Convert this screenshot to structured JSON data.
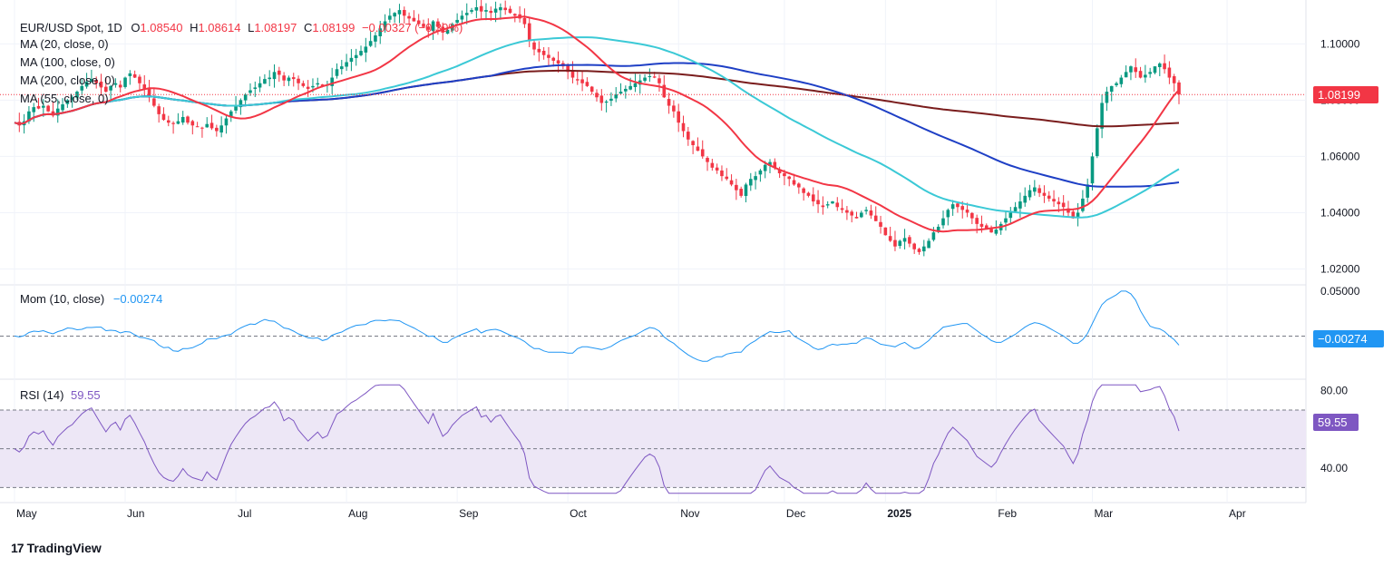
{
  "header": {
    "symbol": "EUR/USD Spot, 1D",
    "open_label": "O",
    "open": "1.08540",
    "high_label": "H",
    "high": "1.08614",
    "low_label": "L",
    "low": "1.08197",
    "close_label": "C",
    "close": "1.08199",
    "change": "−0.00327 (−0.30%)"
  },
  "ma_legend": [
    "MA (20, close, 0)",
    "MA (100, close, 0)",
    "MA (200, close, 0)",
    "MA (55, close, 0)"
  ],
  "momentum": {
    "label": "Mom (10, close)",
    "value": "−0.00274",
    "badge": "−0.00274"
  },
  "rsi": {
    "label": "RSI (14)",
    "value": "59.55",
    "badge": "59.55"
  },
  "price_badge": "1.08199",
  "footer": {
    "brand": "TradingView",
    "logo": "17"
  },
  "colors": {
    "up": "#089981",
    "down": "#f23645",
    "ma20": "#f23645",
    "ma55": "#3bc9d6",
    "ma100": "#1e3fc5",
    "ma200": "#7a1d1d",
    "mom": "#2196f3",
    "rsi": "#7e57c2",
    "rsi_band": "#ede7f6",
    "grid": "#f0f3fa",
    "axis_text": "#131722"
  },
  "chart_data": [
    {
      "type": "candlestick",
      "title": "EUR/USD Spot, 1D",
      "ylim": [
        1.015,
        1.113
      ],
      "y_ticks": [
        "1.10000",
        "1.08000",
        "1.06000",
        "1.04000",
        "1.02000"
      ],
      "y_tick_values": [
        1.1,
        1.08,
        1.06,
        1.04,
        1.02
      ],
      "x_ticks": [
        "May",
        "Jun",
        "Jul",
        "Aug",
        "Sep",
        "Oct",
        "Nov",
        "Dec",
        "2025",
        "Feb",
        "Mar",
        "Apr"
      ],
      "x_tick_day_index": [
        0,
        23,
        46,
        69,
        92,
        115,
        138,
        160,
        181,
        204,
        224,
        252
      ],
      "last_price": 1.08199,
      "close_series": [
        1.072,
        1.071,
        1.0725,
        1.076,
        1.0775,
        1.077,
        1.078,
        1.076,
        1.0745,
        1.077,
        1.0785,
        1.08,
        1.081,
        1.083,
        1.085,
        1.0865,
        1.0875,
        1.086,
        1.0845,
        1.083,
        1.085,
        1.086,
        1.0845,
        1.088,
        1.0895,
        1.088,
        1.086,
        1.084,
        1.081,
        1.078,
        1.075,
        1.073,
        1.072,
        1.0715,
        1.0725,
        1.074,
        1.072,
        1.071,
        1.0705,
        1.07,
        1.0715,
        1.07,
        1.069,
        1.071,
        1.0735,
        1.076,
        1.078,
        1.08,
        1.082,
        1.0835,
        1.0845,
        1.086,
        1.0875,
        1.088,
        1.09,
        1.089,
        1.087,
        1.088,
        1.0875,
        1.086,
        1.085,
        1.084,
        1.085,
        1.086,
        1.085,
        1.0855,
        1.088,
        1.091,
        1.092,
        1.0935,
        1.095,
        1.096,
        1.0975,
        1.099,
        1.101,
        1.103,
        1.1055,
        1.108,
        1.11,
        1.111,
        1.112,
        1.11,
        1.109,
        1.108,
        1.107,
        1.106,
        1.105,
        1.108,
        1.106,
        1.104,
        1.105,
        1.107,
        1.1085,
        1.11,
        1.111,
        1.112,
        1.113,
        1.1115,
        1.112,
        1.111,
        1.1125,
        1.113,
        1.112,
        1.111,
        1.11,
        1.109,
        1.107,
        1.101,
        1.098,
        1.097,
        1.096,
        1.095,
        1.094,
        1.093,
        1.092,
        1.09,
        1.088,
        1.087,
        1.086,
        1.085,
        1.083,
        1.081,
        1.079,
        1.0795,
        1.0805,
        1.082,
        1.083,
        1.084,
        1.085,
        1.086,
        1.087,
        1.088,
        1.0885,
        1.088,
        1.086,
        1.081,
        1.078,
        1.076,
        1.072,
        1.069,
        1.066,
        1.064,
        1.062,
        1.06,
        1.058,
        1.056,
        1.055,
        1.053,
        1.052,
        1.05,
        1.048,
        1.046,
        1.05,
        1.052,
        1.053,
        1.055,
        1.057,
        1.058,
        1.056,
        1.054,
        1.053,
        1.052,
        1.05,
        1.049,
        1.047,
        1.046,
        1.044,
        1.043,
        1.042,
        1.043,
        1.044,
        1.042,
        1.041,
        1.04,
        1.039,
        1.038,
        1.04,
        1.041,
        1.039,
        1.037,
        1.035,
        1.032,
        1.03,
        1.028,
        1.03,
        1.031,
        1.029,
        1.027,
        1.026,
        1.028,
        1.03,
        1.033,
        1.035,
        1.038,
        1.041,
        1.043,
        1.042,
        1.041,
        1.04,
        1.038,
        1.036,
        1.035,
        1.034,
        1.033,
        1.034,
        1.036,
        1.038,
        1.04,
        1.042,
        1.044,
        1.046,
        1.048,
        1.049,
        1.047,
        1.046,
        1.045,
        1.044,
        1.043,
        1.042,
        1.04,
        1.038,
        1.04,
        1.045,
        1.05,
        1.06,
        1.07,
        1.079,
        1.083,
        1.085,
        1.086,
        1.088,
        1.09,
        1.092,
        1.09,
        1.088,
        1.089,
        1.09,
        1.092,
        1.093,
        1.091,
        1.088,
        1.086,
        1.082
      ]
    },
    {
      "type": "line",
      "title": "Mom (10, close)",
      "y_ticks": [
        "0.05000"
      ],
      "y_tick_values": [
        0.05
      ],
      "last_value": -0.00274
    },
    {
      "type": "line",
      "title": "RSI (14)",
      "ylim": [
        25,
        85
      ],
      "y_ticks": [
        "80.00",
        "40.00"
      ],
      "y_tick_values": [
        80,
        40
      ],
      "band": [
        30,
        70
      ],
      "mid_line": 50,
      "last_value": 59.55
    }
  ]
}
